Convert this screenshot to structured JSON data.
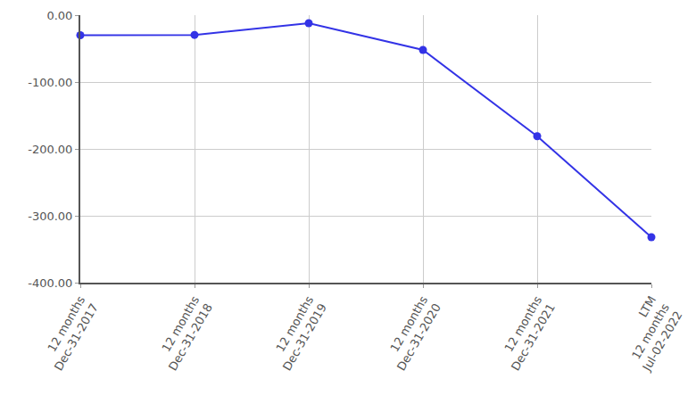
{
  "chart_data": {
    "type": "line",
    "categories": [
      "12 months\nDec-31-2017",
      "12 months\nDec-31-2018",
      "12 months\nDec-31-2019",
      "12 months\nDec-31-2020",
      "12 months\nDec-31-2021",
      "LTM\n12 months\nJul-02-2022"
    ],
    "values": [
      -30,
      -29.5,
      -12,
      -52,
      -181,
      -332
    ],
    "color": "#3333e6",
    "marker": "circle",
    "ylim": [
      -400,
      0
    ],
    "yticks": [
      {
        "value": 0,
        "label": "0.00"
      },
      {
        "value": -100,
        "label": "-100.00"
      },
      {
        "value": -200,
        "label": "-200.00"
      },
      {
        "value": -300,
        "label": "-300.00"
      },
      {
        "value": -400,
        "label": "-400.00"
      }
    ],
    "grid": true
  }
}
